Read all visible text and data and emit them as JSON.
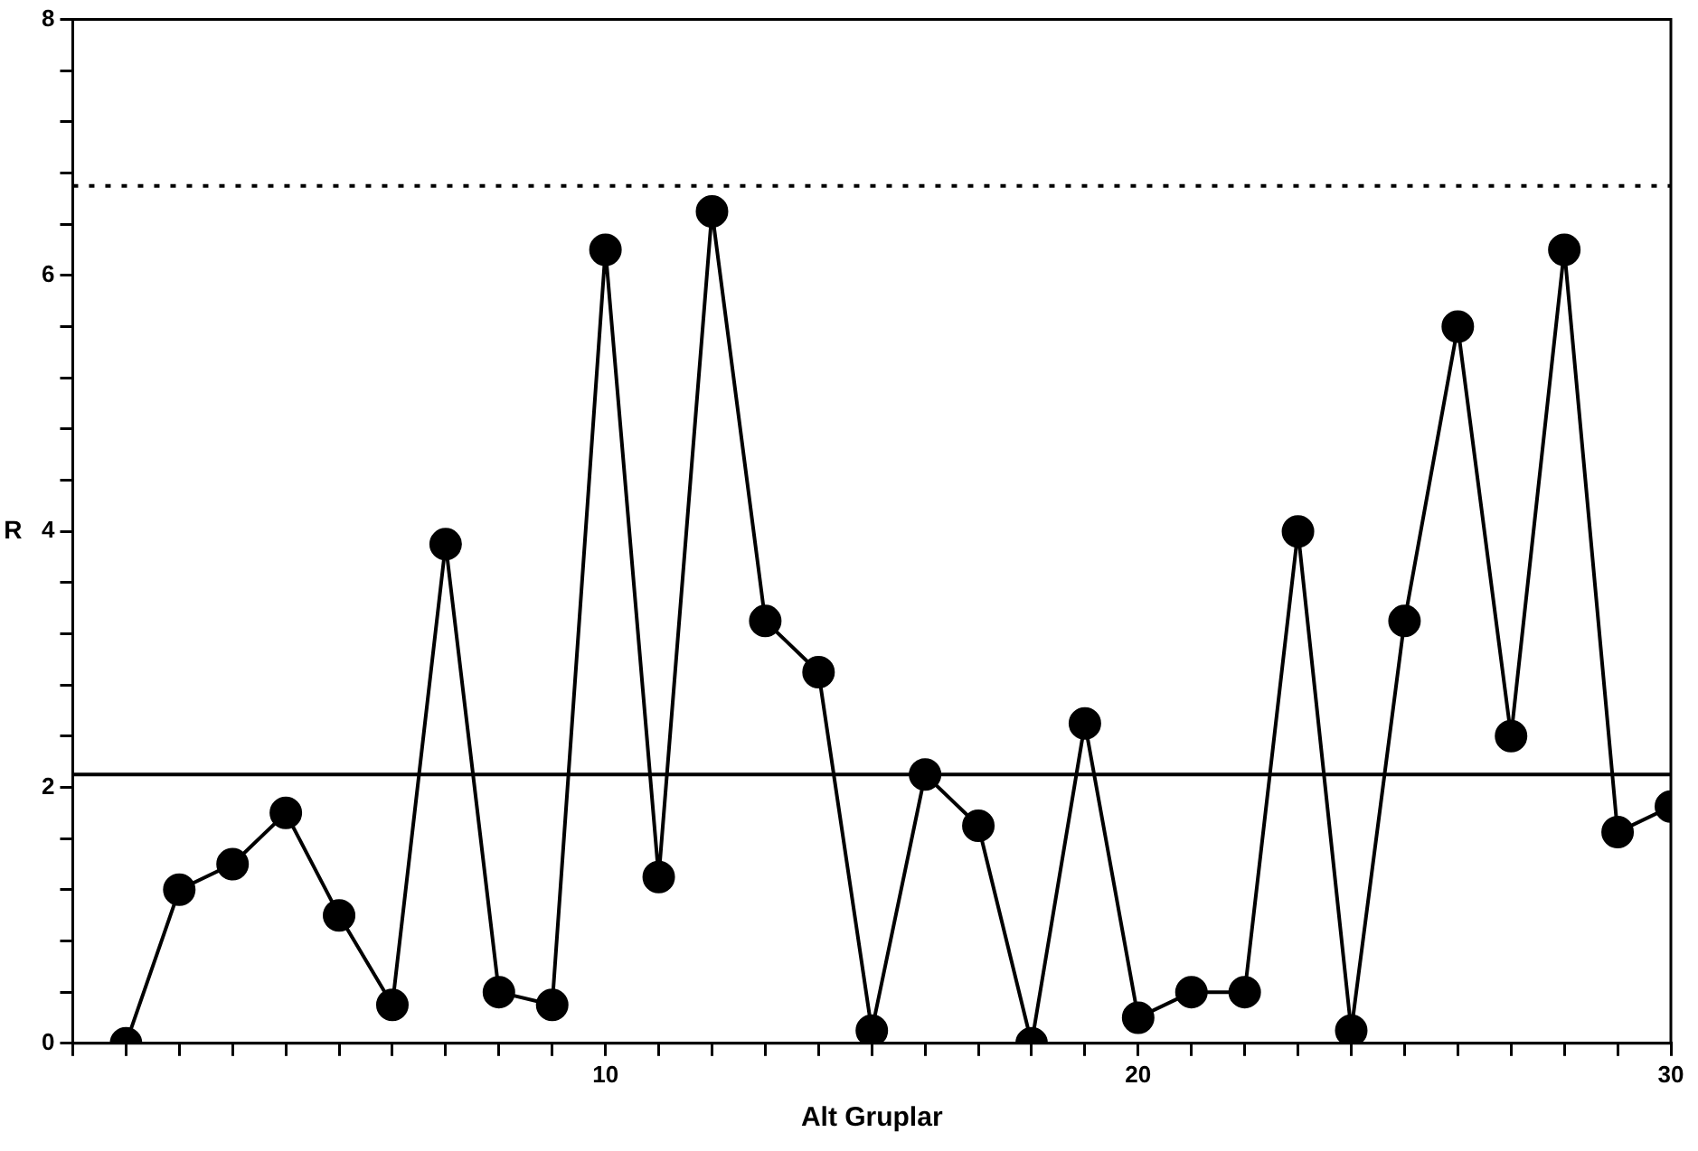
{
  "chart_data": {
    "type": "line",
    "xlabel": "Alt Gruplar",
    "ylabel": "R",
    "x": [
      1,
      2,
      3,
      4,
      5,
      6,
      7,
      8,
      9,
      10,
      11,
      12,
      13,
      14,
      15,
      16,
      17,
      18,
      19,
      20,
      21,
      22,
      23,
      24,
      25,
      26,
      27,
      28,
      29,
      30
    ],
    "series": [
      {
        "color": "#000000",
        "values": [
          0,
          1.2,
          1.4,
          1.8,
          1.0,
          0.3,
          3.9,
          0.4,
          0.3,
          6.2,
          1.3,
          6.5,
          3.3,
          2.9,
          0.1,
          2.1,
          1.7,
          0,
          2.5,
          0.2,
          0.4,
          0.4,
          4.0,
          0.1,
          3.3,
          5.6,
          2.4,
          6.2,
          1.65,
          1.85
        ]
      }
    ],
    "marker": "circle",
    "line_style": "solid",
    "grid": false,
    "legend": false,
    "xlim": [
      0,
      30
    ],
    "xticks": [
      {
        "value": 0,
        "label": null
      },
      {
        "value": 1,
        "label": null
      },
      {
        "value": 2,
        "label": null
      },
      {
        "value": 3,
        "label": null
      },
      {
        "value": 4,
        "label": null
      },
      {
        "value": 5,
        "label": null
      },
      {
        "value": 6,
        "label": null
      },
      {
        "value": 7,
        "label": null
      },
      {
        "value": 8,
        "label": null
      },
      {
        "value": 9,
        "label": null
      },
      10,
      {
        "value": 11,
        "label": null
      },
      {
        "value": 12,
        "label": null
      },
      {
        "value": 13,
        "label": null
      },
      {
        "value": 14,
        "label": null
      },
      {
        "value": 15,
        "label": null
      },
      {
        "value": 16,
        "label": null
      },
      {
        "value": 17,
        "label": null
      },
      {
        "value": 18,
        "label": null
      },
      {
        "value": 19,
        "label": null
      },
      20,
      {
        "value": 21,
        "label": null
      },
      {
        "value": 22,
        "label": null
      },
      {
        "value": 23,
        "label": null
      },
      {
        "value": 24,
        "label": null
      },
      {
        "value": 25,
        "label": null
      },
      {
        "value": 26,
        "label": null
      },
      {
        "value": 27,
        "label": null
      },
      {
        "value": 28,
        "label": null
      },
      {
        "value": 29,
        "label": null
      },
      30
    ],
    "ylim": [
      0,
      8
    ],
    "yticks": [
      0,
      {
        "value": 0.4,
        "label": null
      },
      {
        "value": 0.8,
        "label": null
      },
      {
        "value": 1.2,
        "label": null
      },
      {
        "value": 1.6,
        "label": null
      },
      2,
      {
        "value": 2.4,
        "label": null
      },
      {
        "value": 2.8,
        "label": null
      },
      {
        "value": 3.2,
        "label": null
      },
      {
        "value": 3.6,
        "label": null
      },
      4,
      {
        "value": 4.4,
        "label": null
      },
      {
        "value": 4.8,
        "label": null
      },
      {
        "value": 5.2,
        "label": null
      },
      {
        "value": 5.6,
        "label": null
      },
      6,
      {
        "value": 6.4,
        "label": null
      },
      {
        "value": 6.8,
        "label": null
      },
      {
        "value": 7.2,
        "label": null
      },
      {
        "value": 7.6,
        "label": null
      },
      8
    ],
    "ref_lines": [
      {
        "axis": "y",
        "value": 2.1,
        "line_style": "solid"
      },
      {
        "axis": "y",
        "value": 6.7,
        "line_style": "dotted"
      }
    ]
  }
}
